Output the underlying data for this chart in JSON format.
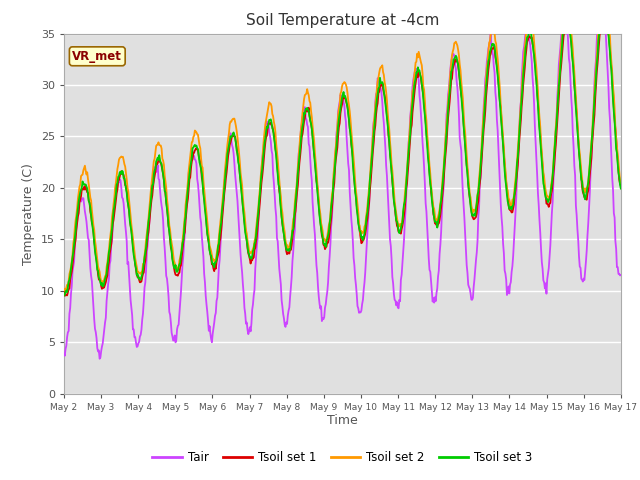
{
  "title": "Soil Temperature at -4cm",
  "xlabel": "Time",
  "ylabel": "Temperature (C)",
  "ylim": [
    0,
    35
  ],
  "background_color": "#ffffff",
  "plot_bg_color": "#e0e0e0",
  "grid_color": "#ffffff",
  "annotation_text": "VR_met",
  "annotation_color": "#8b0000",
  "annotation_bg": "#ffffcc",
  "colors": {
    "Tair": "#cc44ff",
    "Tsoil_set1": "#dd0000",
    "Tsoil_set2": "#ff9900",
    "Tsoil_set3": "#00cc00"
  },
  "legend_labels": [
    "Tair",
    "Tsoil set 1",
    "Tsoil set 2",
    "Tsoil set 3"
  ],
  "tick_labels": [
    "May 2",
    "May 3",
    "May 4",
    "May 5",
    "May 6",
    "May 7",
    "May 8",
    "May 9",
    "May 10",
    "May 11",
    "May 12",
    "May 13",
    "May 14",
    "May 15",
    "May 16",
    "May 17"
  ],
  "tick_positions": [
    1,
    2,
    3,
    4,
    5,
    6,
    7,
    8,
    9,
    10,
    11,
    12,
    13,
    14,
    15,
    16
  ],
  "num_days": 15,
  "pts_per_day": 48
}
